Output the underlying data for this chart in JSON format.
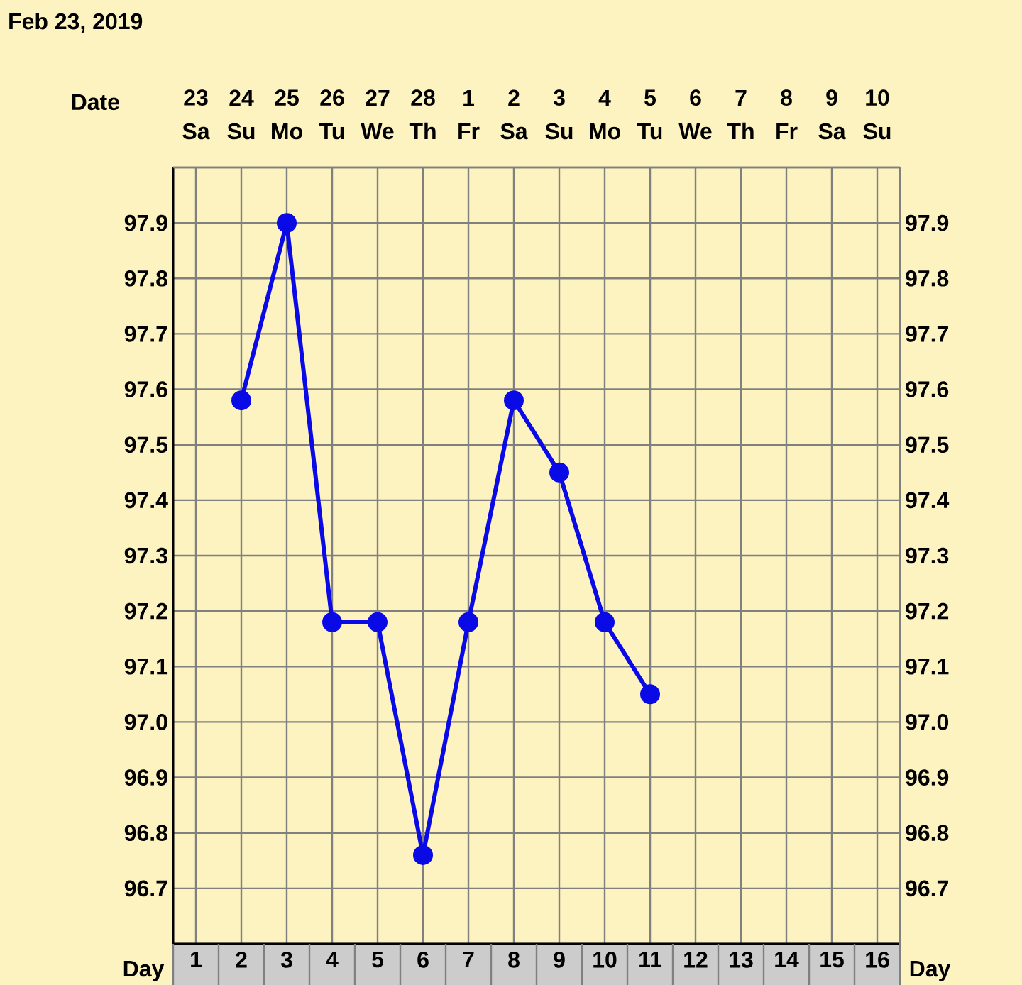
{
  "chart_data": {
    "type": "line",
    "title": "Feb 23, 2019",
    "xlabel": "Day",
    "x2label": "Date",
    "categories": [
      "1",
      "2",
      "3",
      "4",
      "5",
      "6",
      "7",
      "8",
      "9",
      "10",
      "11",
      "12",
      "13",
      "14",
      "15",
      "16"
    ],
    "values": [
      null,
      97.58,
      97.9,
      97.18,
      97.18,
      96.76,
      97.18,
      97.58,
      97.45,
      97.18,
      97.05,
      null,
      null,
      null,
      null,
      null
    ],
    "color": "#0a0ae6",
    "marker": "circle",
    "line_style": "solid",
    "grid": true,
    "x2lim": [
      "2019-02-22T12:00",
      "2019-03-10T12:00"
    ],
    "x2ticks": [
      {
        "value": "2019-02-23",
        "label": "23"
      },
      {
        "value": "2019-02-24",
        "label": "24"
      },
      {
        "value": "2019-02-25",
        "label": "25"
      },
      {
        "value": "2019-02-26",
        "label": "26"
      },
      {
        "value": "2019-02-27",
        "label": "27"
      },
      {
        "value": "2019-02-28",
        "label": "28"
      },
      {
        "value": "2019-03-01",
        "label": "1"
      },
      {
        "value": "2019-03-02",
        "label": "2"
      },
      {
        "value": "2019-03-03",
        "label": "3"
      },
      {
        "value": "2019-03-04",
        "label": "4"
      },
      {
        "value": "2019-03-05",
        "label": "5"
      },
      {
        "value": "2019-03-06",
        "label": "6"
      },
      {
        "value": "2019-03-07",
        "label": "7"
      },
      {
        "value": "2019-03-08",
        "label": "8"
      },
      {
        "value": "2019-03-09",
        "label": "9"
      },
      {
        "value": "2019-03-10",
        "label": "10"
      }
    ],
    "annotations": [
      "Sa",
      "Su",
      "Mo",
      "Tu",
      "We",
      "Th",
      "Fr",
      "Sa",
      "Su",
      "Mo",
      "Tu",
      "We",
      "Th",
      "Fr",
      "Sa",
      "Su"
    ],
    "ylim": [
      96.6,
      98.0
    ],
    "yticks": [
      {
        "value": 96.6,
        "label": null
      },
      96.7,
      96.8,
      96.9,
      {
        "value": 97.0,
        "label": "97.0"
      },
      97.1,
      97.2,
      97.3,
      97.4,
      97.5,
      97.6,
      97.7,
      97.8,
      97.9,
      {
        "value": 98.0,
        "label": null
      }
    ],
    "y2lim": [
      96.6,
      98.0
    ],
    "y2ticks": [
      {
        "value": 96.6,
        "label": null
      },
      96.7,
      96.8,
      96.9,
      {
        "value": 97.0,
        "label": "97.0"
      },
      97.1,
      97.2,
      97.3,
      97.4,
      97.5,
      97.6,
      97.7,
      97.8,
      97.9,
      {
        "value": 98.0,
        "label": null
      }
    ]
  }
}
